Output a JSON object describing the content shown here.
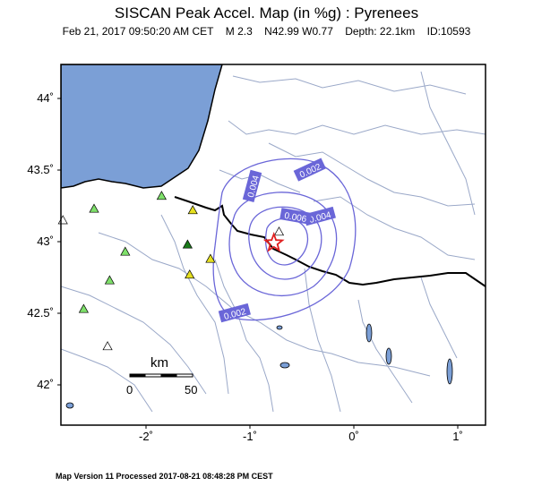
{
  "title": "SISCAN Peak Accel. Map (in %g) : Pyrenees",
  "event": {
    "date": "Feb 21, 2017 09:50:20 AM CET",
    "magnitude": "M 2.3",
    "location": "N42.99 W0.77",
    "depth": "Depth: 22.1km",
    "id": "ID:10593"
  },
  "footer": "Map Version 11 Processed 2017-08-21 08:48:28 PM CEST",
  "lat_labels": [
    "44˚",
    "43.5˚",
    "43˚",
    "42.5˚",
    "42˚"
  ],
  "lon_labels": [
    "-2˚",
    "-1˚",
    "0˚",
    "1˚"
  ],
  "contour_labels": [
    "0.002",
    "0.004",
    "0.004",
    "0.006",
    "0.002"
  ],
  "scale_bar": {
    "unit": "km",
    "ticks": [
      "0",
      "50"
    ]
  },
  "colors": {
    "sea": "#7b9fd6",
    "contour": "#6a66d8",
    "contour_label_bg": "#6a66d8",
    "border": "#000000",
    "rivers": "#9aa8c8",
    "epicenter": "#e02020"
  },
  "stations": [
    {
      "lon": -2.8,
      "lat": 43.15,
      "color": "#ffffff"
    },
    {
      "lon": -2.5,
      "lat": 43.23,
      "color": "#7ee06a"
    },
    {
      "lon": -1.85,
      "lat": 43.32,
      "color": "#7ee06a"
    },
    {
      "lon": -1.55,
      "lat": 43.22,
      "color": "#e6e020"
    },
    {
      "lon": -1.6,
      "lat": 42.98,
      "color": "#1a7a1a"
    },
    {
      "lon": -2.2,
      "lat": 42.93,
      "color": "#7ee06a"
    },
    {
      "lon": -2.35,
      "lat": 42.73,
      "color": "#7ee06a"
    },
    {
      "lon": -2.6,
      "lat": 42.53,
      "color": "#7ee06a"
    },
    {
      "lon": -1.38,
      "lat": 42.88,
      "color": "#e6e020"
    },
    {
      "lon": -1.58,
      "lat": 42.77,
      "color": "#e6e020"
    },
    {
      "lon": -2.37,
      "lat": 42.27,
      "color": "#ffffff"
    },
    {
      "lon": -0.72,
      "lat": 43.07,
      "color": "#ffffff"
    }
  ],
  "epicenter": {
    "lon": -0.77,
    "lat": 42.99
  }
}
